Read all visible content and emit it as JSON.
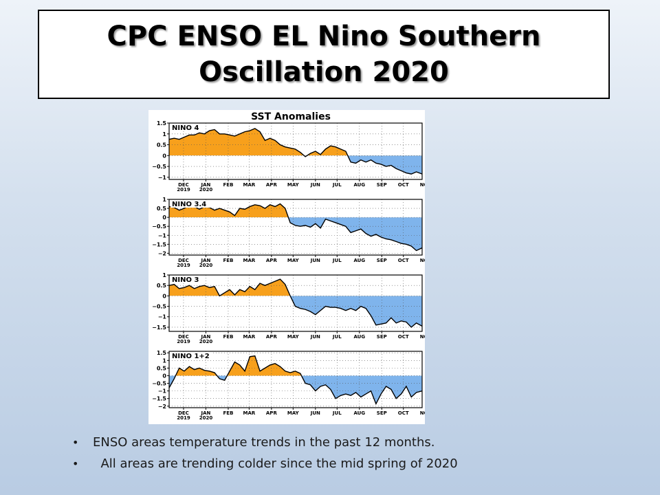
{
  "title": "CPC ENSO EL Nino Southern\nOscillation 2020",
  "bullets": [
    "ENSO areas temperature trends in the past 12 months.",
    "  All areas are trending colder since the mid spring of 2020"
  ],
  "colors": {
    "positive": "#f7a01c",
    "negative": "#7fb4ec",
    "line": "#000000"
  },
  "chart_data": {
    "type": "area",
    "title": "SST Anomalies",
    "month_ticks": [
      "DEC",
      "JAN",
      "FEB",
      "MAR",
      "APR",
      "MAY",
      "JUN",
      "JUL",
      "AUG",
      "SEP",
      "OCT",
      "NOV"
    ],
    "year_ticks": [
      {
        "month": "DEC",
        "label": "2019"
      },
      {
        "month": "JAN",
        "label": "2020"
      }
    ],
    "x_range": [
      "2019-11-25",
      "2020-11-10"
    ],
    "grid": true,
    "series": [
      {
        "name": "NINO 4",
        "ylim": [
          -1.1,
          1.5
        ],
        "y_ticks": [
          1.5,
          1,
          0.5,
          0,
          -0.5,
          -1
        ],
        "points": [
          [
            "2019-11-25",
            0.75
          ],
          [
            "2019-12-02",
            0.8
          ],
          [
            "2019-12-09",
            0.75
          ],
          [
            "2019-12-16",
            0.85
          ],
          [
            "2019-12-23",
            0.95
          ],
          [
            "2019-12-30",
            0.95
          ],
          [
            "2020-01-06",
            1.05
          ],
          [
            "2020-01-13",
            1.0
          ],
          [
            "2020-01-20",
            1.15
          ],
          [
            "2020-01-27",
            1.2
          ],
          [
            "2020-02-03",
            1.0
          ],
          [
            "2020-02-10",
            1.0
          ],
          [
            "2020-02-17",
            0.95
          ],
          [
            "2020-02-24",
            0.9
          ],
          [
            "2020-03-02",
            1.0
          ],
          [
            "2020-03-09",
            1.1
          ],
          [
            "2020-03-16",
            1.15
          ],
          [
            "2020-03-23",
            1.25
          ],
          [
            "2020-03-30",
            1.1
          ],
          [
            "2020-04-06",
            0.7
          ],
          [
            "2020-04-13",
            0.8
          ],
          [
            "2020-04-20",
            0.7
          ],
          [
            "2020-04-27",
            0.5
          ],
          [
            "2020-05-04",
            0.4
          ],
          [
            "2020-05-11",
            0.35
          ],
          [
            "2020-05-18",
            0.3
          ],
          [
            "2020-05-25",
            0.15
          ],
          [
            "2020-06-01",
            -0.05
          ],
          [
            "2020-06-08",
            0.1
          ],
          [
            "2020-06-15",
            0.2
          ],
          [
            "2020-06-22",
            0.05
          ],
          [
            "2020-06-29",
            0.3
          ],
          [
            "2020-07-06",
            0.45
          ],
          [
            "2020-07-13",
            0.4
          ],
          [
            "2020-07-20",
            0.3
          ],
          [
            "2020-07-27",
            0.2
          ],
          [
            "2020-08-03",
            -0.3
          ],
          [
            "2020-08-10",
            -0.35
          ],
          [
            "2020-08-17",
            -0.2
          ],
          [
            "2020-08-24",
            -0.3
          ],
          [
            "2020-08-31",
            -0.2
          ],
          [
            "2020-09-07",
            -0.35
          ],
          [
            "2020-09-14",
            -0.4
          ],
          [
            "2020-09-21",
            -0.5
          ],
          [
            "2020-09-28",
            -0.45
          ],
          [
            "2020-10-05",
            -0.6
          ],
          [
            "2020-10-12",
            -0.7
          ],
          [
            "2020-10-19",
            -0.8
          ],
          [
            "2020-10-26",
            -0.85
          ],
          [
            "2020-11-02",
            -0.75
          ],
          [
            "2020-11-10",
            -0.85
          ]
        ]
      },
      {
        "name": "NINO 3.4",
        "ylim": [
          -2.1,
          1.0
        ],
        "y_ticks": [
          1,
          0.5,
          0,
          -0.5,
          -1,
          -1.5,
          -2
        ],
        "points": [
          [
            "2019-11-25",
            0.6
          ],
          [
            "2019-12-02",
            0.55
          ],
          [
            "2019-12-09",
            0.4
          ],
          [
            "2019-12-16",
            0.5
          ],
          [
            "2019-12-23",
            0.7
          ],
          [
            "2019-12-30",
            0.6
          ],
          [
            "2020-01-06",
            0.45
          ],
          [
            "2020-01-13",
            0.6
          ],
          [
            "2020-01-20",
            0.55
          ],
          [
            "2020-01-27",
            0.4
          ],
          [
            "2020-02-03",
            0.5
          ],
          [
            "2020-02-10",
            0.4
          ],
          [
            "2020-02-17",
            0.3
          ],
          [
            "2020-02-24",
            0.1
          ],
          [
            "2020-03-02",
            0.5
          ],
          [
            "2020-03-09",
            0.45
          ],
          [
            "2020-03-16",
            0.6
          ],
          [
            "2020-03-23",
            0.7
          ],
          [
            "2020-03-30",
            0.65
          ],
          [
            "2020-04-06",
            0.5
          ],
          [
            "2020-04-13",
            0.7
          ],
          [
            "2020-04-20",
            0.6
          ],
          [
            "2020-04-27",
            0.75
          ],
          [
            "2020-05-04",
            0.5
          ],
          [
            "2020-05-11",
            -0.3
          ],
          [
            "2020-05-18",
            -0.45
          ],
          [
            "2020-05-25",
            -0.5
          ],
          [
            "2020-06-01",
            -0.45
          ],
          [
            "2020-06-08",
            -0.55
          ],
          [
            "2020-06-15",
            -0.35
          ],
          [
            "2020-06-22",
            -0.6
          ],
          [
            "2020-06-29",
            -0.1
          ],
          [
            "2020-07-06",
            -0.2
          ],
          [
            "2020-07-13",
            -0.3
          ],
          [
            "2020-07-20",
            -0.4
          ],
          [
            "2020-07-27",
            -0.5
          ],
          [
            "2020-08-03",
            -0.85
          ],
          [
            "2020-08-10",
            -0.75
          ],
          [
            "2020-08-17",
            -0.65
          ],
          [
            "2020-08-24",
            -0.9
          ],
          [
            "2020-08-31",
            -1.05
          ],
          [
            "2020-09-07",
            -0.95
          ],
          [
            "2020-09-14",
            -1.1
          ],
          [
            "2020-09-21",
            -1.2
          ],
          [
            "2020-09-28",
            -1.25
          ],
          [
            "2020-10-05",
            -1.35
          ],
          [
            "2020-10-12",
            -1.45
          ],
          [
            "2020-10-19",
            -1.5
          ],
          [
            "2020-10-26",
            -1.6
          ],
          [
            "2020-11-02",
            -1.85
          ],
          [
            "2020-11-10",
            -1.7
          ]
        ]
      },
      {
        "name": "NINO 3",
        "ylim": [
          -1.7,
          1.0
        ],
        "y_ticks": [
          1,
          0.5,
          0,
          -0.5,
          -1,
          -1.5
        ],
        "points": [
          [
            "2019-11-25",
            0.5
          ],
          [
            "2019-12-02",
            0.55
          ],
          [
            "2019-12-09",
            0.35
          ],
          [
            "2019-12-16",
            0.4
          ],
          [
            "2019-12-23",
            0.5
          ],
          [
            "2019-12-30",
            0.35
          ],
          [
            "2020-01-06",
            0.45
          ],
          [
            "2020-01-13",
            0.5
          ],
          [
            "2020-01-20",
            0.4
          ],
          [
            "2020-01-27",
            0.45
          ],
          [
            "2020-02-03",
            0.0
          ],
          [
            "2020-02-10",
            0.15
          ],
          [
            "2020-02-17",
            0.3
          ],
          [
            "2020-02-24",
            0.05
          ],
          [
            "2020-03-02",
            0.3
          ],
          [
            "2020-03-09",
            0.2
          ],
          [
            "2020-03-16",
            0.45
          ],
          [
            "2020-03-23",
            0.3
          ],
          [
            "2020-03-30",
            0.6
          ],
          [
            "2020-04-06",
            0.5
          ],
          [
            "2020-04-13",
            0.6
          ],
          [
            "2020-04-20",
            0.7
          ],
          [
            "2020-04-27",
            0.8
          ],
          [
            "2020-05-04",
            0.55
          ],
          [
            "2020-05-11",
            0.0
          ],
          [
            "2020-05-18",
            -0.5
          ],
          [
            "2020-05-25",
            -0.6
          ],
          [
            "2020-06-01",
            -0.65
          ],
          [
            "2020-06-08",
            -0.75
          ],
          [
            "2020-06-15",
            -0.9
          ],
          [
            "2020-06-22",
            -0.7
          ],
          [
            "2020-06-29",
            -0.5
          ],
          [
            "2020-07-06",
            -0.55
          ],
          [
            "2020-07-13",
            -0.55
          ],
          [
            "2020-07-20",
            -0.6
          ],
          [
            "2020-07-27",
            -0.7
          ],
          [
            "2020-08-03",
            -0.6
          ],
          [
            "2020-08-10",
            -0.7
          ],
          [
            "2020-08-17",
            -0.5
          ],
          [
            "2020-08-24",
            -0.6
          ],
          [
            "2020-08-31",
            -0.95
          ],
          [
            "2020-09-07",
            -1.4
          ],
          [
            "2020-09-14",
            -1.35
          ],
          [
            "2020-09-21",
            -1.3
          ],
          [
            "2020-09-28",
            -1.05
          ],
          [
            "2020-10-05",
            -1.3
          ],
          [
            "2020-10-12",
            -1.2
          ],
          [
            "2020-10-19",
            -1.25
          ],
          [
            "2020-10-26",
            -1.5
          ],
          [
            "2020-11-02",
            -1.3
          ],
          [
            "2020-11-10",
            -1.45
          ]
        ]
      },
      {
        "name": "NINO 1+2",
        "ylim": [
          -2.1,
          1.6
        ],
        "y_ticks": [
          1.5,
          1,
          0.5,
          0,
          -0.5,
          -1,
          -1.5,
          -2
        ],
        "points": [
          [
            "2019-11-25",
            -0.8
          ],
          [
            "2019-12-02",
            -0.2
          ],
          [
            "2019-12-09",
            0.5
          ],
          [
            "2019-12-16",
            0.3
          ],
          [
            "2019-12-23",
            0.6
          ],
          [
            "2019-12-30",
            0.4
          ],
          [
            "2020-01-06",
            0.5
          ],
          [
            "2020-01-13",
            0.35
          ],
          [
            "2020-01-20",
            0.3
          ],
          [
            "2020-01-27",
            0.2
          ],
          [
            "2020-02-03",
            -0.2
          ],
          [
            "2020-02-10",
            -0.3
          ],
          [
            "2020-02-17",
            0.3
          ],
          [
            "2020-02-24",
            0.9
          ],
          [
            "2020-03-02",
            0.7
          ],
          [
            "2020-03-09",
            0.3
          ],
          [
            "2020-03-16",
            1.25
          ],
          [
            "2020-03-23",
            1.3
          ],
          [
            "2020-03-30",
            0.3
          ],
          [
            "2020-04-06",
            0.5
          ],
          [
            "2020-04-13",
            0.7
          ],
          [
            "2020-04-20",
            0.8
          ],
          [
            "2020-04-27",
            0.6
          ],
          [
            "2020-05-04",
            0.3
          ],
          [
            "2020-05-11",
            0.2
          ],
          [
            "2020-05-18",
            0.3
          ],
          [
            "2020-05-25",
            0.15
          ],
          [
            "2020-06-01",
            -0.5
          ],
          [
            "2020-06-08",
            -0.6
          ],
          [
            "2020-06-15",
            -1.0
          ],
          [
            "2020-06-22",
            -0.7
          ],
          [
            "2020-06-29",
            -0.6
          ],
          [
            "2020-07-06",
            -0.9
          ],
          [
            "2020-07-13",
            -1.5
          ],
          [
            "2020-07-20",
            -1.3
          ],
          [
            "2020-07-27",
            -1.2
          ],
          [
            "2020-08-03",
            -1.3
          ],
          [
            "2020-08-10",
            -1.1
          ],
          [
            "2020-08-17",
            -1.4
          ],
          [
            "2020-08-24",
            -1.2
          ],
          [
            "2020-08-31",
            -1.0
          ],
          [
            "2020-09-07",
            -1.85
          ],
          [
            "2020-09-14",
            -1.2
          ],
          [
            "2020-09-21",
            -0.7
          ],
          [
            "2020-09-28",
            -0.9
          ],
          [
            "2020-10-05",
            -1.5
          ],
          [
            "2020-10-12",
            -1.2
          ],
          [
            "2020-10-19",
            -0.7
          ],
          [
            "2020-10-26",
            -1.4
          ],
          [
            "2020-11-02",
            -1.1
          ],
          [
            "2020-11-10",
            -1.0
          ]
        ]
      }
    ]
  }
}
